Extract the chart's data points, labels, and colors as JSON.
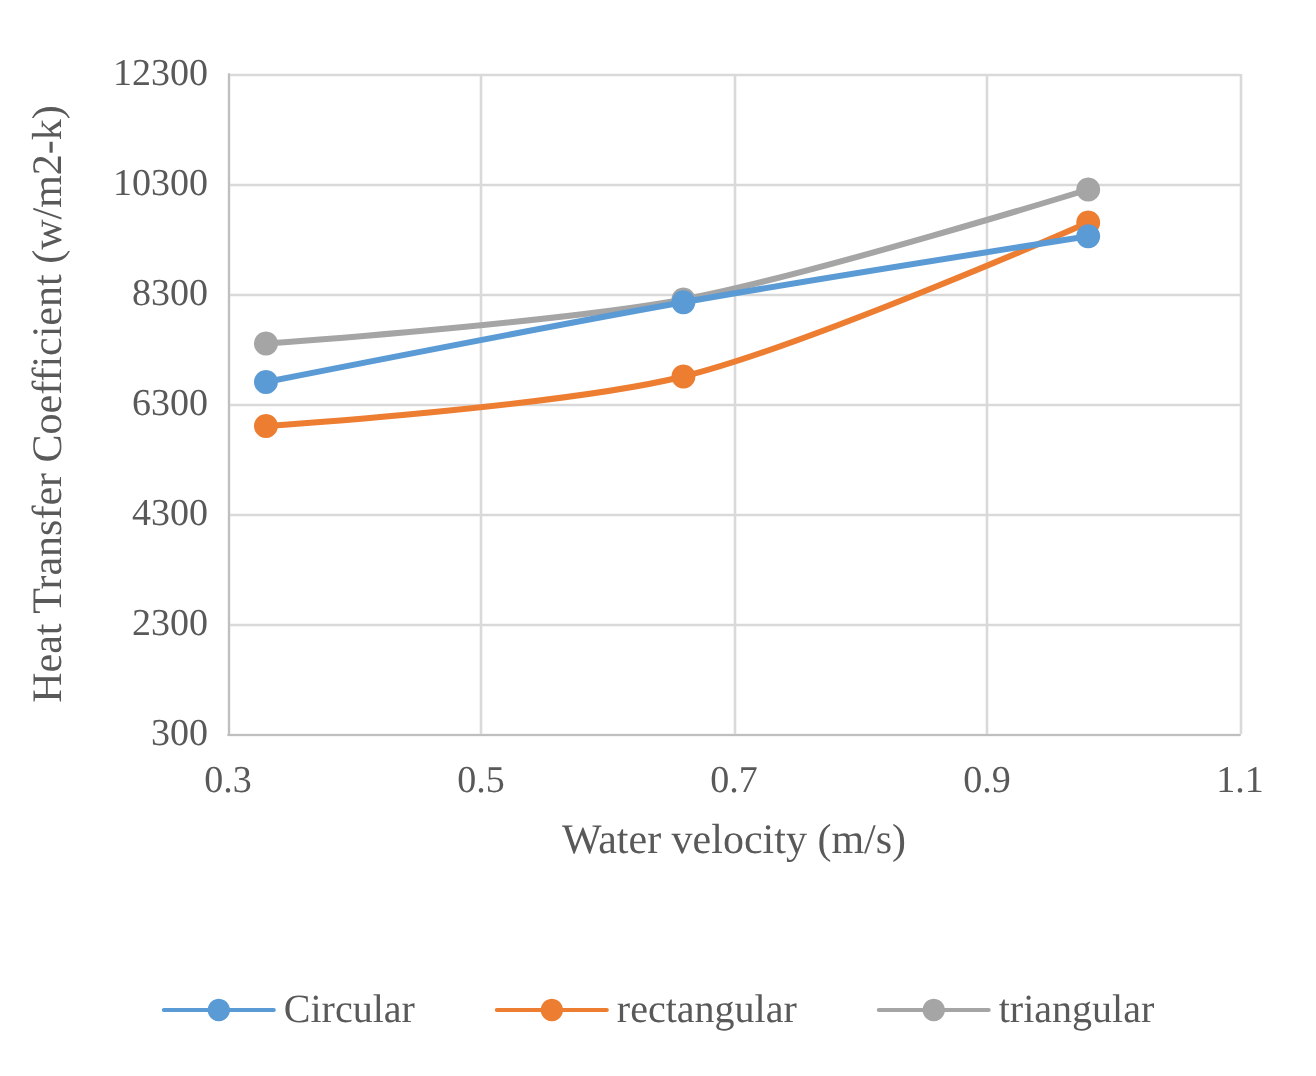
{
  "chart_data": {
    "type": "line",
    "xlabel": "Water velocity (m/s)",
    "ylabel": "Heat Transfer Coefficient (w/m2-k)",
    "x": [
      0.33,
      0.66,
      0.98
    ],
    "series": [
      {
        "name": "Circular",
        "color": "#5b9bd5",
        "values": [
          6700,
          8150,
          9350
        ]
      },
      {
        "name": "rectangular",
        "color": "#ed7d31",
        "values": [
          5900,
          6800,
          9600
        ]
      },
      {
        "name": "triangular",
        "color": "#a5a5a5",
        "values": [
          7400,
          8200,
          10200
        ]
      }
    ],
    "xlim": [
      0.3,
      1.1
    ],
    "xticks": [
      0.3,
      0.5,
      0.7,
      0.9,
      1.1
    ],
    "ylim": [
      300,
      12300
    ],
    "yticks": [
      300,
      2300,
      4300,
      6300,
      8300,
      10300,
      12300
    ],
    "grid": true,
    "legend": "bottom",
    "marker": "circle",
    "line_style": "solid"
  }
}
